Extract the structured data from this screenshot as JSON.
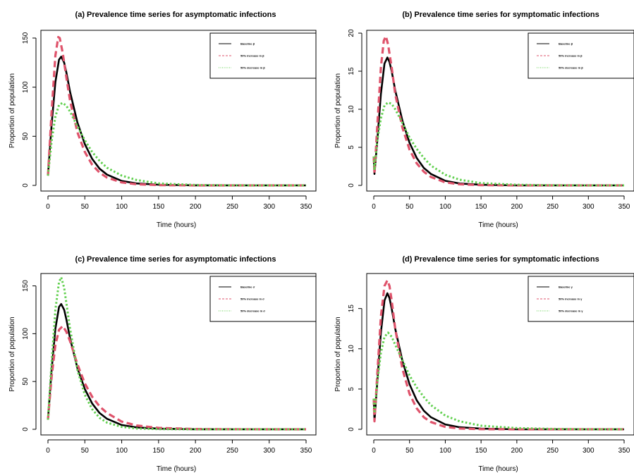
{
  "colors": {
    "baseline": "#000000",
    "increase": "#DF536B",
    "decrease": "#61D04F"
  },
  "chart_data": [
    {
      "type": "line",
      "title": "(a) Prevalence time series for asymptomatic infections",
      "xlabel": "Time (hours)",
      "ylabel": "Proportion of population",
      "xlim": [
        0,
        350
      ],
      "ylim": [
        0,
        155
      ],
      "xticks": [
        0,
        50,
        100,
        150,
        200,
        250,
        300,
        350
      ],
      "yticks": [
        0,
        50,
        100,
        150
      ],
      "grid": false,
      "legend_position": "top-right",
      "series": [
        {
          "name": "Baseline β",
          "style": "solid",
          "x": [
            0,
            5,
            10,
            15,
            18,
            22,
            25,
            30,
            40,
            50,
            60,
            70,
            80,
            100,
            120,
            150,
            200,
            250,
            300,
            350
          ],
          "y": [
            10,
            62,
            105,
            128,
            131,
            125,
            115,
            95,
            64,
            42,
            27,
            17,
            11,
            4.5,
            2,
            0.7,
            0.1,
            0,
            0,
            0
          ]
        },
        {
          "name": "50% increase in β",
          "style": "dashed",
          "x": [
            0,
            5,
            10,
            14,
            16,
            20,
            25,
            30,
            40,
            50,
            60,
            70,
            80,
            100,
            120,
            150,
            200,
            250,
            300,
            350
          ],
          "y": [
            10,
            75,
            132,
            151,
            150,
            135,
            110,
            86,
            54,
            34,
            21,
            13,
            8,
            3,
            1.2,
            0.3,
            0,
            0,
            0,
            0
          ]
        },
        {
          "name": "50% decrease in β",
          "style": "dotted",
          "x": [
            0,
            5,
            10,
            15,
            20,
            25,
            30,
            40,
            50,
            60,
            70,
            80,
            100,
            120,
            150,
            200,
            250,
            300,
            350
          ],
          "y": [
            10,
            45,
            70,
            82,
            84,
            81,
            75,
            60,
            46,
            34,
            25,
            18,
            10,
            5.5,
            2,
            0.4,
            0.1,
            0,
            0
          ]
        }
      ]
    },
    {
      "type": "line",
      "title": "(b) Prevalence time series for symptomatic infections",
      "xlabel": "Time (hours)",
      "ylabel": "Proportion of population",
      "xlim": [
        0,
        350
      ],
      "ylim": [
        0,
        20
      ],
      "xticks": [
        0,
        50,
        100,
        150,
        200,
        250,
        300,
        350
      ],
      "yticks": [
        0,
        5,
        10,
        15,
        20
      ],
      "grid": false,
      "legend_position": "top-right",
      "series": [
        {
          "name": "Baseline β",
          "style": "solid",
          "x": [
            0,
            1,
            5,
            10,
            15,
            19,
            22,
            25,
            30,
            40,
            50,
            60,
            70,
            80,
            100,
            120,
            150,
            200,
            250,
            300,
            350
          ],
          "y": [
            3.8,
            1.5,
            6,
            12,
            16,
            16.8,
            16.2,
            15,
            12.5,
            8.5,
            5.6,
            3.6,
            2.3,
            1.5,
            0.6,
            0.25,
            0.08,
            0,
            0,
            0,
            0
          ]
        },
        {
          "name": "50% increase in β",
          "style": "dashed",
          "x": [
            0,
            1,
            5,
            10,
            14,
            17,
            20,
            25,
            30,
            40,
            50,
            60,
            70,
            80,
            100,
            120,
            150,
            200,
            250,
            300,
            350
          ],
          "y": [
            3.8,
            1.5,
            8,
            15.5,
            19,
            19.6,
            18.5,
            15.5,
            12,
            7.6,
            4.7,
            2.9,
            1.8,
            1.1,
            0.4,
            0.15,
            0.04,
            0,
            0,
            0,
            0
          ]
        },
        {
          "name": "50% decrease in β",
          "style": "dotted",
          "x": [
            0,
            1,
            5,
            10,
            15,
            20,
            25,
            30,
            40,
            50,
            60,
            70,
            80,
            100,
            120,
            150,
            200,
            250,
            300,
            350
          ],
          "y": [
            3.8,
            2,
            6,
            8.8,
            10.5,
            10.9,
            10.7,
            10,
            8.2,
            6.3,
            4.8,
            3.6,
            2.6,
            1.4,
            0.75,
            0.3,
            0.08,
            0.02,
            0,
            0
          ]
        }
      ]
    },
    {
      "type": "line",
      "title": "(c) Prevalence time series for asymptomatic infections",
      "xlabel": "Time (hours)",
      "ylabel": "Proportion of population",
      "xlim": [
        0,
        350
      ],
      "ylim": [
        0,
        160
      ],
      "xticks": [
        0,
        50,
        100,
        150,
        200,
        250,
        300,
        350
      ],
      "yticks": [
        0,
        50,
        100,
        150
      ],
      "grid": false,
      "legend_position": "top-right",
      "series": [
        {
          "name": "Baseline σ",
          "style": "solid",
          "x": [
            0,
            5,
            10,
            15,
            18,
            22,
            25,
            30,
            40,
            50,
            60,
            70,
            80,
            100,
            120,
            150,
            200,
            250,
            300,
            350
          ],
          "y": [
            10,
            62,
            105,
            128,
            131,
            125,
            115,
            95,
            64,
            42,
            27,
            17,
            11,
            4.5,
            2,
            0.7,
            0.1,
            0,
            0,
            0
          ]
        },
        {
          "name": "50% increase in σ",
          "style": "dashed",
          "x": [
            0,
            5,
            10,
            15,
            20,
            25,
            30,
            40,
            50,
            60,
            70,
            80,
            100,
            120,
            150,
            200,
            250,
            300,
            350
          ],
          "y": [
            10,
            55,
            88,
            104,
            108,
            102,
            92,
            68,
            48,
            34,
            24,
            17,
            8,
            4,
            1.5,
            0.3,
            0.05,
            0,
            0
          ]
        },
        {
          "name": "50% decrease in σ",
          "style": "dotted",
          "x": [
            0,
            5,
            10,
            15,
            18,
            22,
            25,
            30,
            40,
            50,
            60,
            70,
            80,
            100,
            120,
            150,
            200,
            250,
            300,
            350
          ],
          "y": [
            10,
            70,
            125,
            154,
            159,
            148,
            132,
            105,
            62,
            36,
            21,
            12,
            7,
            2.5,
            0.8,
            0.2,
            0,
            0,
            0,
            0
          ]
        }
      ]
    },
    {
      "type": "line",
      "title": "(d) Prevalence time series for symptomatic infections",
      "xlabel": "Time (hours)",
      "ylabel": "Proportion of population",
      "xlim": [
        0,
        350
      ],
      "ylim": [
        0,
        19
      ],
      "xticks": [
        0,
        50,
        100,
        150,
        200,
        250,
        300,
        350
      ],
      "yticks": [
        0,
        5,
        10,
        15
      ],
      "grid": false,
      "legend_position": "top-right",
      "series": [
        {
          "name": "Baseline γ",
          "style": "solid",
          "x": [
            0,
            1,
            5,
            10,
            15,
            19,
            22,
            25,
            30,
            40,
            50,
            60,
            70,
            80,
            100,
            120,
            150,
            200,
            250,
            300,
            350
          ],
          "y": [
            3.8,
            1,
            6,
            12,
            16,
            16.9,
            16.3,
            15,
            12.5,
            8.5,
            5.6,
            3.6,
            2.3,
            1.5,
            0.6,
            0.25,
            0.08,
            0,
            0,
            0,
            0
          ]
        },
        {
          "name": "50% increase in γ",
          "style": "dashed",
          "x": [
            0,
            1,
            5,
            10,
            15,
            19,
            22,
            25,
            30,
            40,
            50,
            60,
            70,
            80,
            100,
            120,
            150,
            200,
            250,
            300,
            350
          ],
          "y": [
            3.8,
            1,
            7,
            14,
            17.8,
            18.5,
            17.8,
            16,
            12.5,
            7.5,
            4.4,
            2.6,
            1.5,
            0.9,
            0.3,
            0.1,
            0.02,
            0,
            0,
            0,
            0
          ]
        },
        {
          "name": "50% decrease in γ",
          "style": "dotted",
          "x": [
            0,
            1,
            5,
            10,
            15,
            20,
            25,
            30,
            40,
            50,
            60,
            70,
            80,
            100,
            120,
            150,
            200,
            250,
            300,
            350
          ],
          "y": [
            3.8,
            2,
            6,
            9.5,
            11.5,
            12,
            11.5,
            10.5,
            8.6,
            6.7,
            5.2,
            4,
            3,
            1.7,
            1,
            0.45,
            0.15,
            0.05,
            0,
            0
          ]
        }
      ]
    }
  ]
}
